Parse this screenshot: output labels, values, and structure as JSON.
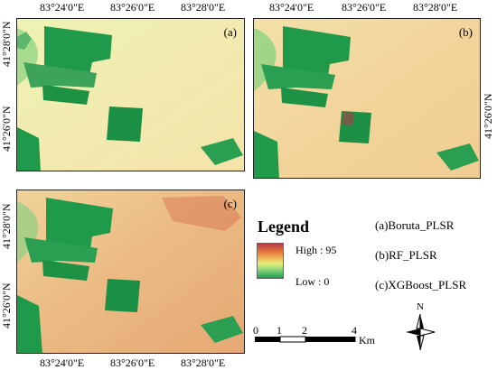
{
  "panels": {
    "a": {
      "tag": "(a)"
    },
    "b": {
      "tag": "(b)"
    },
    "c": {
      "tag": "(c)"
    }
  },
  "axes": {
    "top_a": [
      "83°24'0\"E",
      "83°26'0\"E",
      "83°28'0\"E"
    ],
    "top_b": [
      "83°24'0\"E",
      "83°26'0\"E",
      "83°28'0\"E"
    ],
    "bottom_c": [
      "83°24'0\"E",
      "83°26'0\"E",
      "83°28'0\"E"
    ],
    "left_a": [
      "41°28'0\"N",
      "41°26'0\"N"
    ],
    "right_b": [
      "41°26'0\"N"
    ],
    "left_c": [
      "41°28'0\"N",
      "41°26'0\"N"
    ]
  },
  "legend": {
    "title": "Legend",
    "high": "High : 95",
    "low": "Low : 0",
    "colors": [
      "#b63a4a",
      "#e87a3a",
      "#f0c060",
      "#e9f07a",
      "#7ed27a",
      "#1f9a4a"
    ]
  },
  "models": {
    "a": "(a)Boruta_PLSR",
    "b": "(b)RF_PLSR",
    "c": "(c)XGBoost_PLSR"
  },
  "scalebar": {
    "ticks": [
      "0",
      "1",
      "2",
      "4"
    ],
    "unit": "Km"
  },
  "north_arrow": {
    "letter": "N"
  }
}
